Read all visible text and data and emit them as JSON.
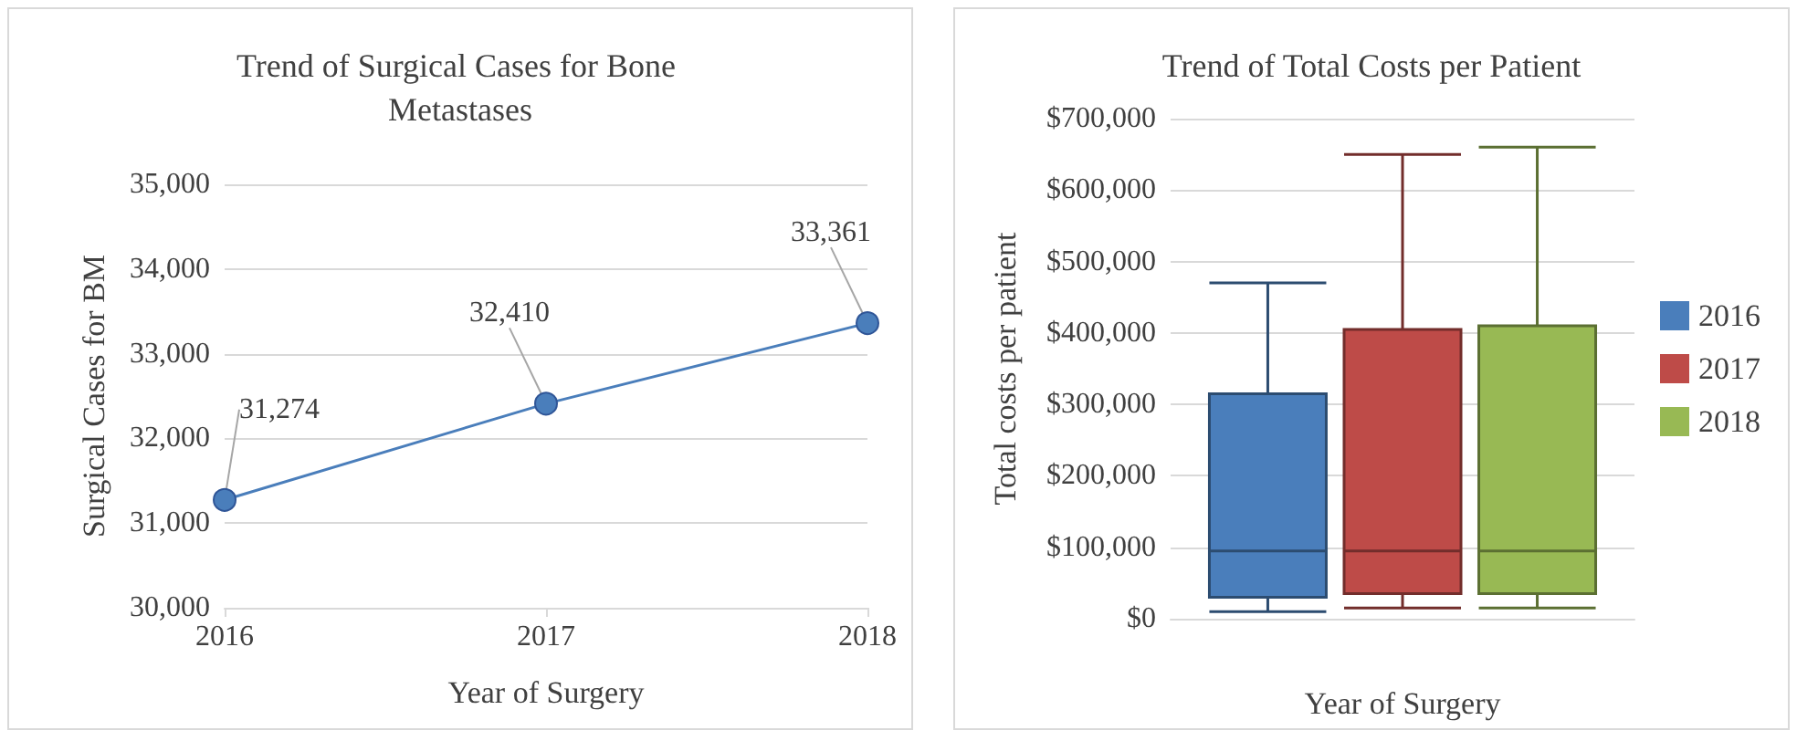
{
  "chart_data": [
    {
      "type": "line",
      "title": "Trend of Surgical Cases for Bone Metastases",
      "xlabel": "Year of Surgery",
      "ylabel": "Surgical Cases for BM",
      "categories": [
        "2016",
        "2017",
        "2018"
      ],
      "series": [
        {
          "color": "#4a7ebb",
          "values": [
            31274,
            32410,
            33361
          ],
          "value_labels": [
            "31,274",
            "32,410",
            "33,361"
          ]
        }
      ],
      "ylim": [
        30000,
        35000
      ],
      "yticks": [
        {
          "value": 30000,
          "label": "30,000"
        },
        {
          "value": 31000,
          "label": "31,000"
        },
        {
          "value": 32000,
          "label": "32,000"
        },
        {
          "value": 33000,
          "label": "33,000"
        },
        {
          "value": 34000,
          "label": "34,000"
        },
        {
          "value": 35000,
          "label": "35,000"
        }
      ],
      "grid": "y",
      "marker": "circle",
      "legend": false
    },
    {
      "type": "box",
      "title": "Trend of Total Costs per Patient",
      "xlabel": "Year of Surgery",
      "ylabel": "Total costs per patient",
      "categories": [
        null
      ],
      "series": [
        {
          "name": "2016",
          "color": "#4a7ebb",
          "boxes": [
            {
              "low": 10000,
              "q1": 30000,
              "median": 95000,
              "q3": 315000,
              "high": 470000
            }
          ]
        },
        {
          "name": "2017",
          "color": "#be4b48",
          "boxes": [
            {
              "low": 15000,
              "q1": 35000,
              "median": 95000,
              "q3": 405000,
              "high": 650000
            }
          ]
        },
        {
          "name": "2018",
          "color": "#98b954",
          "boxes": [
            {
              "low": 15000,
              "q1": 35000,
              "median": 95000,
              "q3": 410000,
              "high": 660000
            }
          ]
        }
      ],
      "ylim": [
        0,
        700000
      ],
      "yticks": [
        {
          "value": 0,
          "label": "$0"
        },
        {
          "value": 100000,
          "label": "$100,000"
        },
        {
          "value": 200000,
          "label": "$200,000"
        },
        {
          "value": 300000,
          "label": "$300,000"
        },
        {
          "value": 400000,
          "label": "$400,000"
        },
        {
          "value": 500000,
          "label": "$500,000"
        },
        {
          "value": 600000,
          "label": "$600,000"
        },
        {
          "value": 700000,
          "label": "$700,000"
        }
      ],
      "grid": "y",
      "legend": "right"
    }
  ]
}
